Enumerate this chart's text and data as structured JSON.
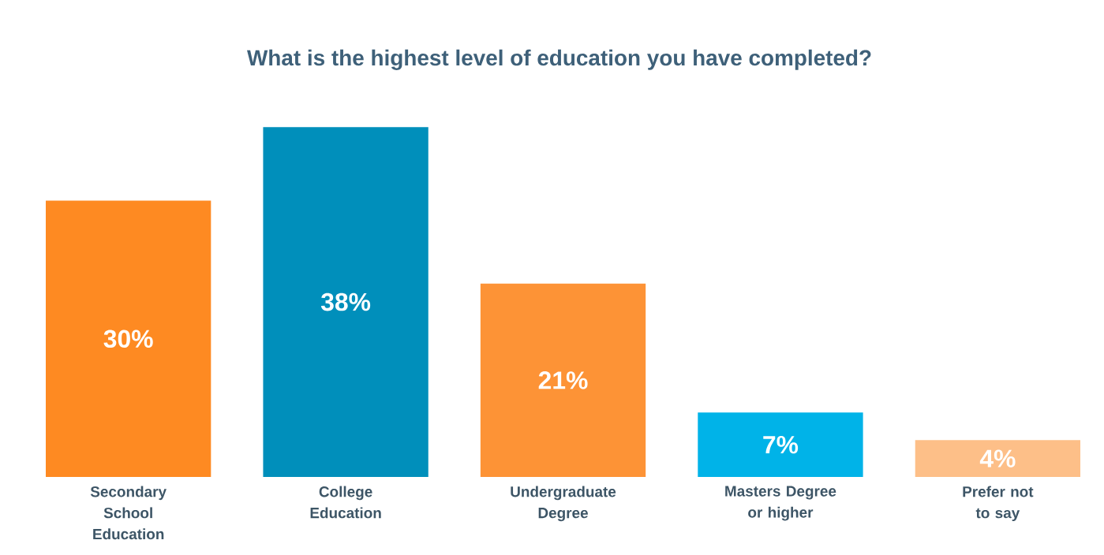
{
  "chart_data": {
    "type": "bar",
    "title": "What is the highest level of education you have completed?",
    "categories": [
      "Secondary School Education",
      "College Education",
      "Undergraduate Degree",
      "Masters Degree or higher",
      "Prefer not to say"
    ],
    "values": [
      30,
      38,
      21,
      7,
      4
    ],
    "value_labels": [
      "30%",
      "38%",
      "21%",
      "7%",
      "4%"
    ],
    "colors": [
      "#fe8a22",
      "#008fbb",
      "#fd9336",
      "#00b3e8",
      "#fdbf88"
    ]
  }
}
